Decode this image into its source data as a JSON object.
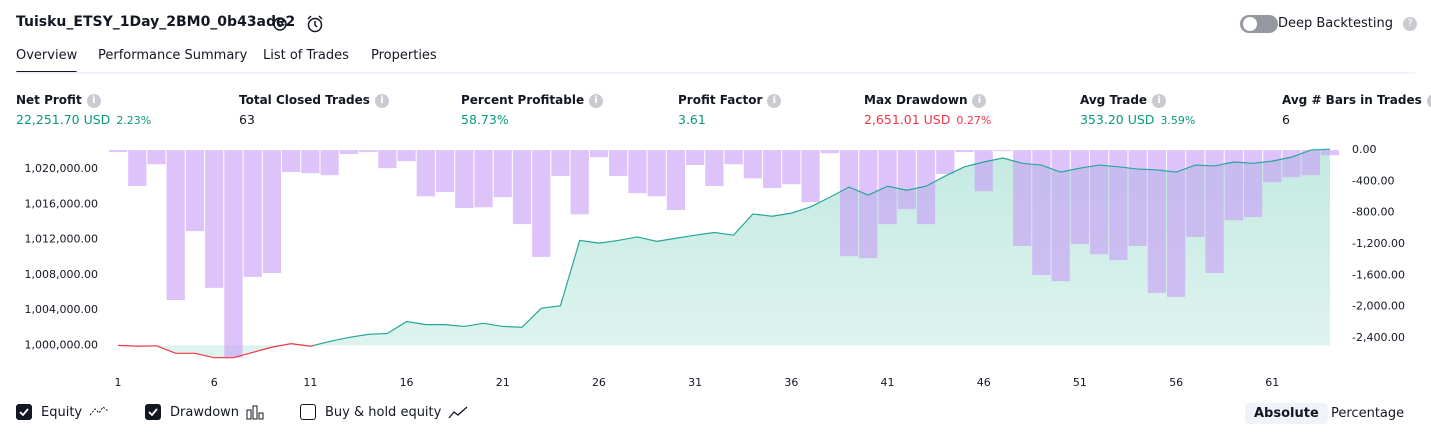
{
  "header": {
    "title": "Tuisku_ETSY_1Day_2BM0_0b43ade2",
    "deep_backtesting": "Deep Backtesting"
  },
  "tabs": [
    "Overview",
    "Performance Summary",
    "List of Trades",
    "Properties"
  ],
  "stats": [
    {
      "label": "Net Profit",
      "value": "22,251.70 USD",
      "change": "2.23%",
      "color": "#089981"
    },
    {
      "label": "Total Closed Trades",
      "value": "63",
      "color": "#131722"
    },
    {
      "label": "Percent Profitable",
      "value": "58.73%",
      "color": "#089981"
    },
    {
      "label": "Profit Factor",
      "value": "3.61",
      "color": "#089981"
    },
    {
      "label": "Max Drawdown",
      "value": "2,651.01 USD",
      "change": "0.27%",
      "color": "#f23645"
    },
    {
      "label": "Avg Trade",
      "value": "353.20 USD",
      "change": "3.59%",
      "color": "#089981"
    },
    {
      "label": "Avg # Bars in Trades",
      "value": "6",
      "color": "#131722"
    }
  ],
  "chart_data": {
    "type": "line",
    "x": [
      1,
      2,
      3,
      4,
      5,
      6,
      7,
      8,
      9,
      10,
      11,
      12,
      13,
      14,
      15,
      16,
      17,
      18,
      19,
      20,
      21,
      22,
      23,
      24,
      25,
      26,
      27,
      28,
      29,
      30,
      31,
      32,
      33,
      34,
      35,
      36,
      37,
      38,
      39,
      40,
      41,
      42,
      43,
      44,
      45,
      46,
      47,
      48,
      49,
      50,
      51,
      52,
      53,
      54,
      55,
      56,
      57,
      58,
      59,
      60,
      61,
      62,
      63,
      64
    ],
    "xlim": [
      1,
      64
    ],
    "xticks": [
      1,
      6,
      11,
      16,
      21,
      26,
      31,
      36,
      41,
      46,
      51,
      56,
      61
    ],
    "ylim": [
      998000,
      1022500
    ],
    "yticks": [
      {
        "value": 1000000,
        "label": "1,000,000.00"
      },
      {
        "value": 1004000,
        "label": "1,004,000.00"
      },
      {
        "value": 1008000,
        "label": "1,008,000.00"
      },
      {
        "value": 1012000,
        "label": "1,012,000.00"
      },
      {
        "value": 1016000,
        "label": "1,016,000.00"
      },
      {
        "value": 1020000,
        "label": "1,020,000.00"
      }
    ],
    "y2lim": [
      -2720,
      40
    ],
    "y2ticks": [
      {
        "value": 0,
        "label": "0.00"
      },
      {
        "value": -400,
        "label": "-400.00"
      },
      {
        "value": -800,
        "label": "-800.00"
      },
      {
        "value": -1200,
        "label": "-1,200.00"
      },
      {
        "value": -1600,
        "label": "-1,600.00"
      },
      {
        "value": -2000,
        "label": "-2,000.00"
      },
      {
        "value": -2400,
        "label": "-2,400.00"
      }
    ],
    "series": [
      {
        "name": "Equity",
        "color": "#26a69a",
        "negative_color": "#f23645",
        "area_color": "#b9e6dc",
        "values": [
          1000000,
          999900,
          999950,
          999100,
          999100,
          998600,
          998600,
          999200,
          999800,
          1000200,
          999900,
          1000450,
          1000900,
          1001250,
          1001350,
          1002700,
          1002350,
          1002350,
          1002150,
          1002500,
          1002150,
          1002050,
          1004200,
          1004500,
          1011900,
          1011600,
          1011900,
          1012300,
          1011800,
          1012150,
          1012500,
          1012800,
          1012500,
          1014900,
          1014650,
          1015000,
          1015700,
          1016800,
          1017950,
          1017050,
          1018050,
          1017600,
          1018050,
          1019200,
          1020250,
          1020800,
          1021250,
          1020650,
          1020450,
          1019650,
          1020100,
          1020450,
          1020250,
          1020000,
          1019900,
          1019650,
          1020450,
          1020350,
          1020800,
          1020650,
          1020900,
          1021350,
          1022150,
          1022251.7
        ]
      },
      {
        "name": "Drawdown",
        "color": "#c89bf7",
        "axis": "y2",
        "type": "bar",
        "values": [
          -25,
          -460,
          -180,
          -1915,
          -1035,
          -1760,
          -2651.01,
          -1620,
          -1570,
          -280,
          -295,
          -320,
          -50,
          -25,
          -230,
          -140,
          -590,
          -535,
          -740,
          -730,
          -600,
          -945,
          -1365,
          -330,
          -820,
          -90,
          -330,
          -550,
          -590,
          -765,
          -190,
          -460,
          -180,
          -360,
          -485,
          -435,
          -665,
          -40,
          -1355,
          -1380,
          -945,
          -755,
          -945,
          -305,
          -25,
          -525,
          -10,
          -1225,
          -1595,
          -1675,
          -1200,
          -1330,
          -1405,
          -1225,
          -1825,
          -1875,
          -1110,
          -1570,
          -895,
          -855,
          -410,
          -345,
          -320,
          -65
        ]
      }
    ]
  },
  "legend_extra": "Buy & hold equity",
  "modes": [
    "Absolute",
    "Percentage"
  ]
}
